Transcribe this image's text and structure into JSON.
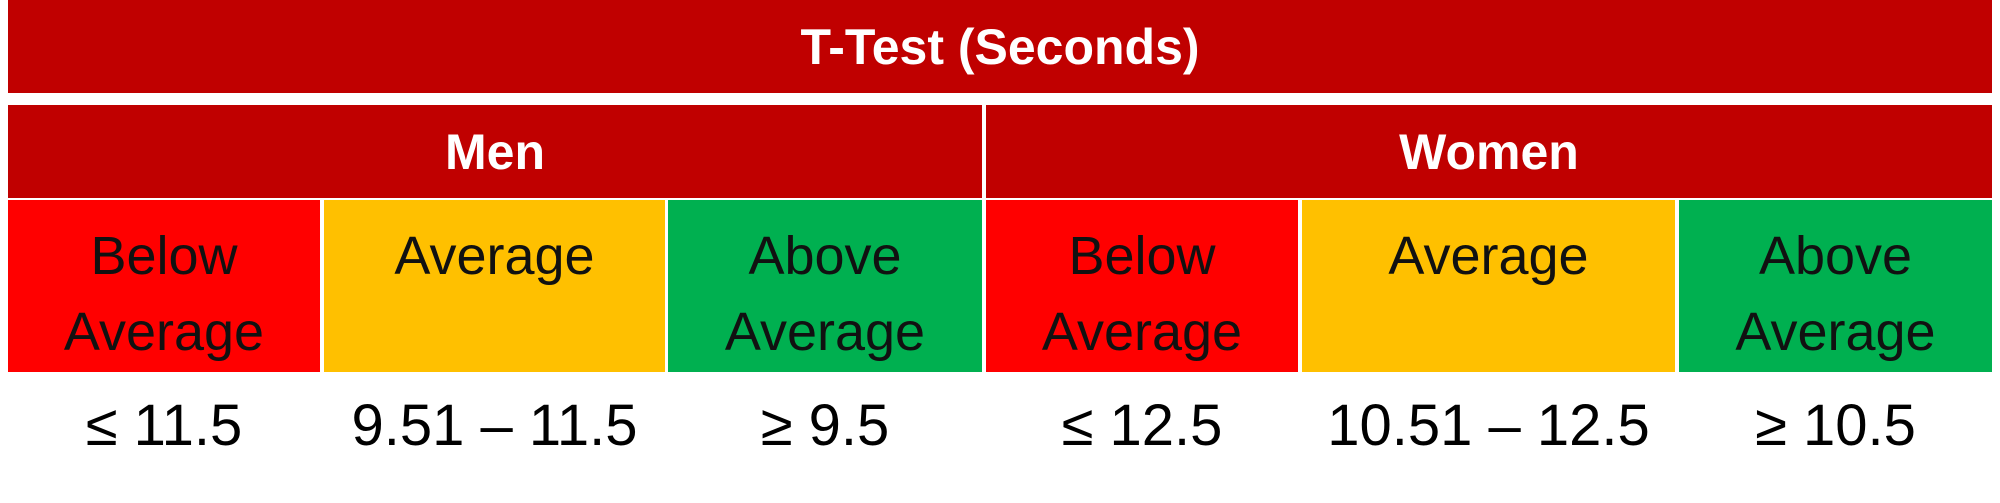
{
  "table": {
    "title": "T-Test (Seconds)",
    "groups": [
      {
        "label": "Men",
        "columns": [
          {
            "label": "Below Average",
            "value": "≤ 11.5"
          },
          {
            "label": "Average",
            "value": "9.51 – 11.5"
          },
          {
            "label": "Above Average",
            "value": "≥ 9.5"
          }
        ]
      },
      {
        "label": "Women",
        "columns": [
          {
            "label": "Below Average",
            "value": "≤ 12.5"
          },
          {
            "label": "Average",
            "value": "10.51 – 12.5"
          },
          {
            "label": "Above Average",
            "value": "≥ 10.5"
          }
        ]
      }
    ]
  }
}
